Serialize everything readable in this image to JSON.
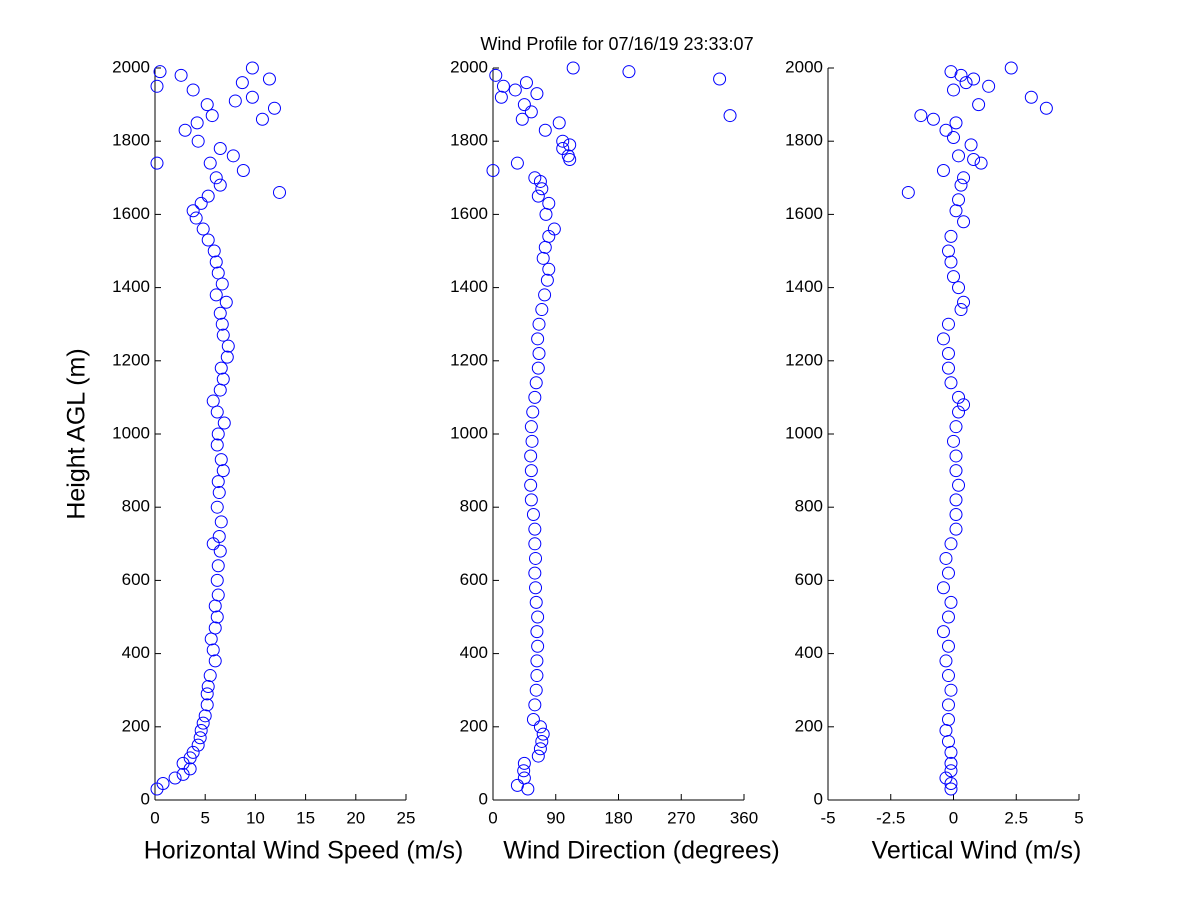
{
  "chart_data": [
    {
      "type": "scatter",
      "title": "Wind Profile for  07/16/19 23:33:07",
      "ylabel": "Height AGL (m)",
      "xlabel": "Horizontal Wind Speed (m/s)",
      "color": "#0000ff",
      "xlim": [
        0,
        25
      ],
      "xticks": [
        0,
        5,
        10,
        15,
        20,
        25
      ],
      "ylim": [
        0,
        2000
      ],
      "yticks": [
        0,
        200,
        400,
        600,
        800,
        1000,
        1200,
        1400,
        1600,
        1800,
        2000
      ],
      "y": [
        30,
        45,
        60,
        70,
        85,
        100,
        115,
        130,
        150,
        170,
        190,
        210,
        230,
        260,
        290,
        310,
        340,
        380,
        410,
        440,
        470,
        500,
        530,
        560,
        600,
        640,
        680,
        700,
        720,
        760,
        800,
        840,
        870,
        900,
        930,
        970,
        1000,
        1030,
        1060,
        1090,
        1120,
        1150,
        1180,
        1210,
        1240,
        1270,
        1300,
        1330,
        1360,
        1380,
        1410,
        1440,
        1470,
        1500,
        1530,
        1560,
        1590,
        1610,
        1630,
        1650,
        1660,
        1680,
        1700,
        1720,
        1740,
        1740,
        1760,
        1780,
        1800,
        1830,
        1850,
        1860,
        1870,
        1890,
        1900,
        1910,
        1920,
        1940,
        1950,
        1960,
        1970,
        1980,
        1990,
        2000
      ],
      "x": [
        0.2,
        0.8,
        2,
        2.8,
        3.5,
        2.8,
        3.5,
        3.8,
        4.3,
        4.5,
        4.6,
        4.8,
        5,
        5.2,
        5.2,
        5.3,
        5.5,
        6,
        5.8,
        5.6,
        6,
        6.2,
        6,
        6.3,
        6.2,
        6.3,
        6.5,
        5.8,
        6.4,
        6.6,
        6.2,
        6.4,
        6.3,
        6.8,
        6.6,
        6.2,
        6.3,
        6.9,
        6.2,
        5.8,
        6.5,
        6.8,
        6.6,
        7.2,
        7.3,
        6.8,
        6.7,
        6.5,
        7.1,
        6.1,
        6.7,
        6.3,
        6.1,
        5.9,
        5.3,
        4.8,
        4.1,
        3.8,
        4.6,
        5.3,
        12.4,
        6.5,
        6.1,
        8.8,
        5.5,
        0.2,
        7.8,
        6.5,
        4.3,
        3,
        4.2,
        10.7,
        5.7,
        11.9,
        5.2,
        8,
        9.7,
        3.8,
        0.2,
        8.7,
        11.4,
        2.6,
        0.5,
        9.7
      ]
    },
    {
      "type": "scatter",
      "xlabel": "Wind Direction (degrees)",
      "color": "#0000ff",
      "xlim": [
        0,
        360
      ],
      "xticks": [
        0,
        90,
        180,
        270,
        360
      ],
      "ylim": [
        0,
        2000
      ],
      "yticks": [
        0,
        200,
        400,
        600,
        800,
        1000,
        1200,
        1400,
        1600,
        1800,
        2000
      ],
      "y": [
        30,
        40,
        60,
        80,
        100,
        120,
        140,
        160,
        180,
        200,
        220,
        260,
        300,
        340,
        380,
        420,
        460,
        500,
        540,
        580,
        620,
        660,
        700,
        740,
        780,
        820,
        860,
        900,
        940,
        980,
        1020,
        1060,
        1100,
        1140,
        1180,
        1220,
        1260,
        1300,
        1340,
        1380,
        1420,
        1450,
        1480,
        1510,
        1540,
        1560,
        1600,
        1630,
        1650,
        1670,
        1690,
        1700,
        1720,
        1740,
        1750,
        1760,
        1780,
        1790,
        1800,
        1830,
        1850,
        1860,
        1870,
        1880,
        1900,
        1920,
        1930,
        1940,
        1950,
        1960,
        1970,
        1980,
        1990,
        2000
      ],
      "x": [
        50,
        35,
        45,
        44,
        45,
        65,
        68,
        70,
        72,
        68,
        58,
        60,
        62,
        63,
        63,
        64,
        63,
        64,
        62,
        61,
        60,
        61,
        60,
        60,
        58,
        55,
        54,
        55,
        54,
        56,
        55,
        57,
        60,
        62,
        65,
        66,
        64,
        66,
        70,
        74,
        78,
        80,
        72,
        75,
        80,
        88,
        76,
        80,
        65,
        70,
        68,
        60,
        0,
        35,
        110,
        108,
        100,
        110,
        100,
        75,
        95,
        42,
        340,
        55,
        45,
        12,
        63,
        32,
        15,
        48,
        325,
        4,
        195,
        115
      ]
    },
    {
      "type": "scatter",
      "xlabel": "Vertical Wind (m/s)",
      "color": "#0000ff",
      "xlim": [
        -5,
        5
      ],
      "xticks": [
        -5,
        -2.5,
        0,
        2.5,
        5
      ],
      "ylim": [
        0,
        2000
      ],
      "yticks": [
        0,
        200,
        400,
        600,
        800,
        1000,
        1200,
        1400,
        1600,
        1800,
        2000
      ],
      "y": [
        30,
        45,
        60,
        80,
        100,
        130,
        160,
        190,
        220,
        260,
        300,
        340,
        380,
        420,
        460,
        500,
        540,
        580,
        620,
        660,
        700,
        740,
        780,
        820,
        860,
        900,
        940,
        980,
        1020,
        1060,
        1080,
        1100,
        1140,
        1180,
        1220,
        1260,
        1300,
        1340,
        1360,
        1400,
        1430,
        1470,
        1500,
        1540,
        1580,
        1610,
        1640,
        1660,
        1680,
        1700,
        1720,
        1740,
        1750,
        1760,
        1790,
        1810,
        1830,
        1850,
        1860,
        1870,
        1890,
        1900,
        1920,
        1940,
        1950,
        1960,
        1970,
        1980,
        1990,
        2000
      ],
      "x": [
        -0.1,
        -0.1,
        -0.3,
        -0.1,
        -0.1,
        -0.1,
        -0.2,
        -0.3,
        -0.2,
        -0.2,
        -0.1,
        -0.2,
        -0.3,
        -0.2,
        -0.4,
        -0.2,
        -0.1,
        -0.4,
        -0.2,
        -0.3,
        -0.1,
        0.1,
        0.1,
        0.1,
        0.2,
        0.1,
        0.1,
        0,
        0.1,
        0.2,
        0.4,
        0.2,
        -0.1,
        -0.2,
        -0.2,
        -0.4,
        -0.2,
        0.3,
        0.4,
        0.2,
        0,
        -0.1,
        -0.2,
        -0.1,
        0.4,
        0.1,
        0.2,
        -1.8,
        0.3,
        0.4,
        -0.4,
        1.1,
        0.8,
        0.2,
        0.7,
        0,
        -0.3,
        0.1,
        -0.8,
        -1.3,
        3.7,
        1,
        3.1,
        0,
        1.4,
        0.5,
        0.8,
        0.3,
        -0.1,
        2.3
      ]
    }
  ]
}
